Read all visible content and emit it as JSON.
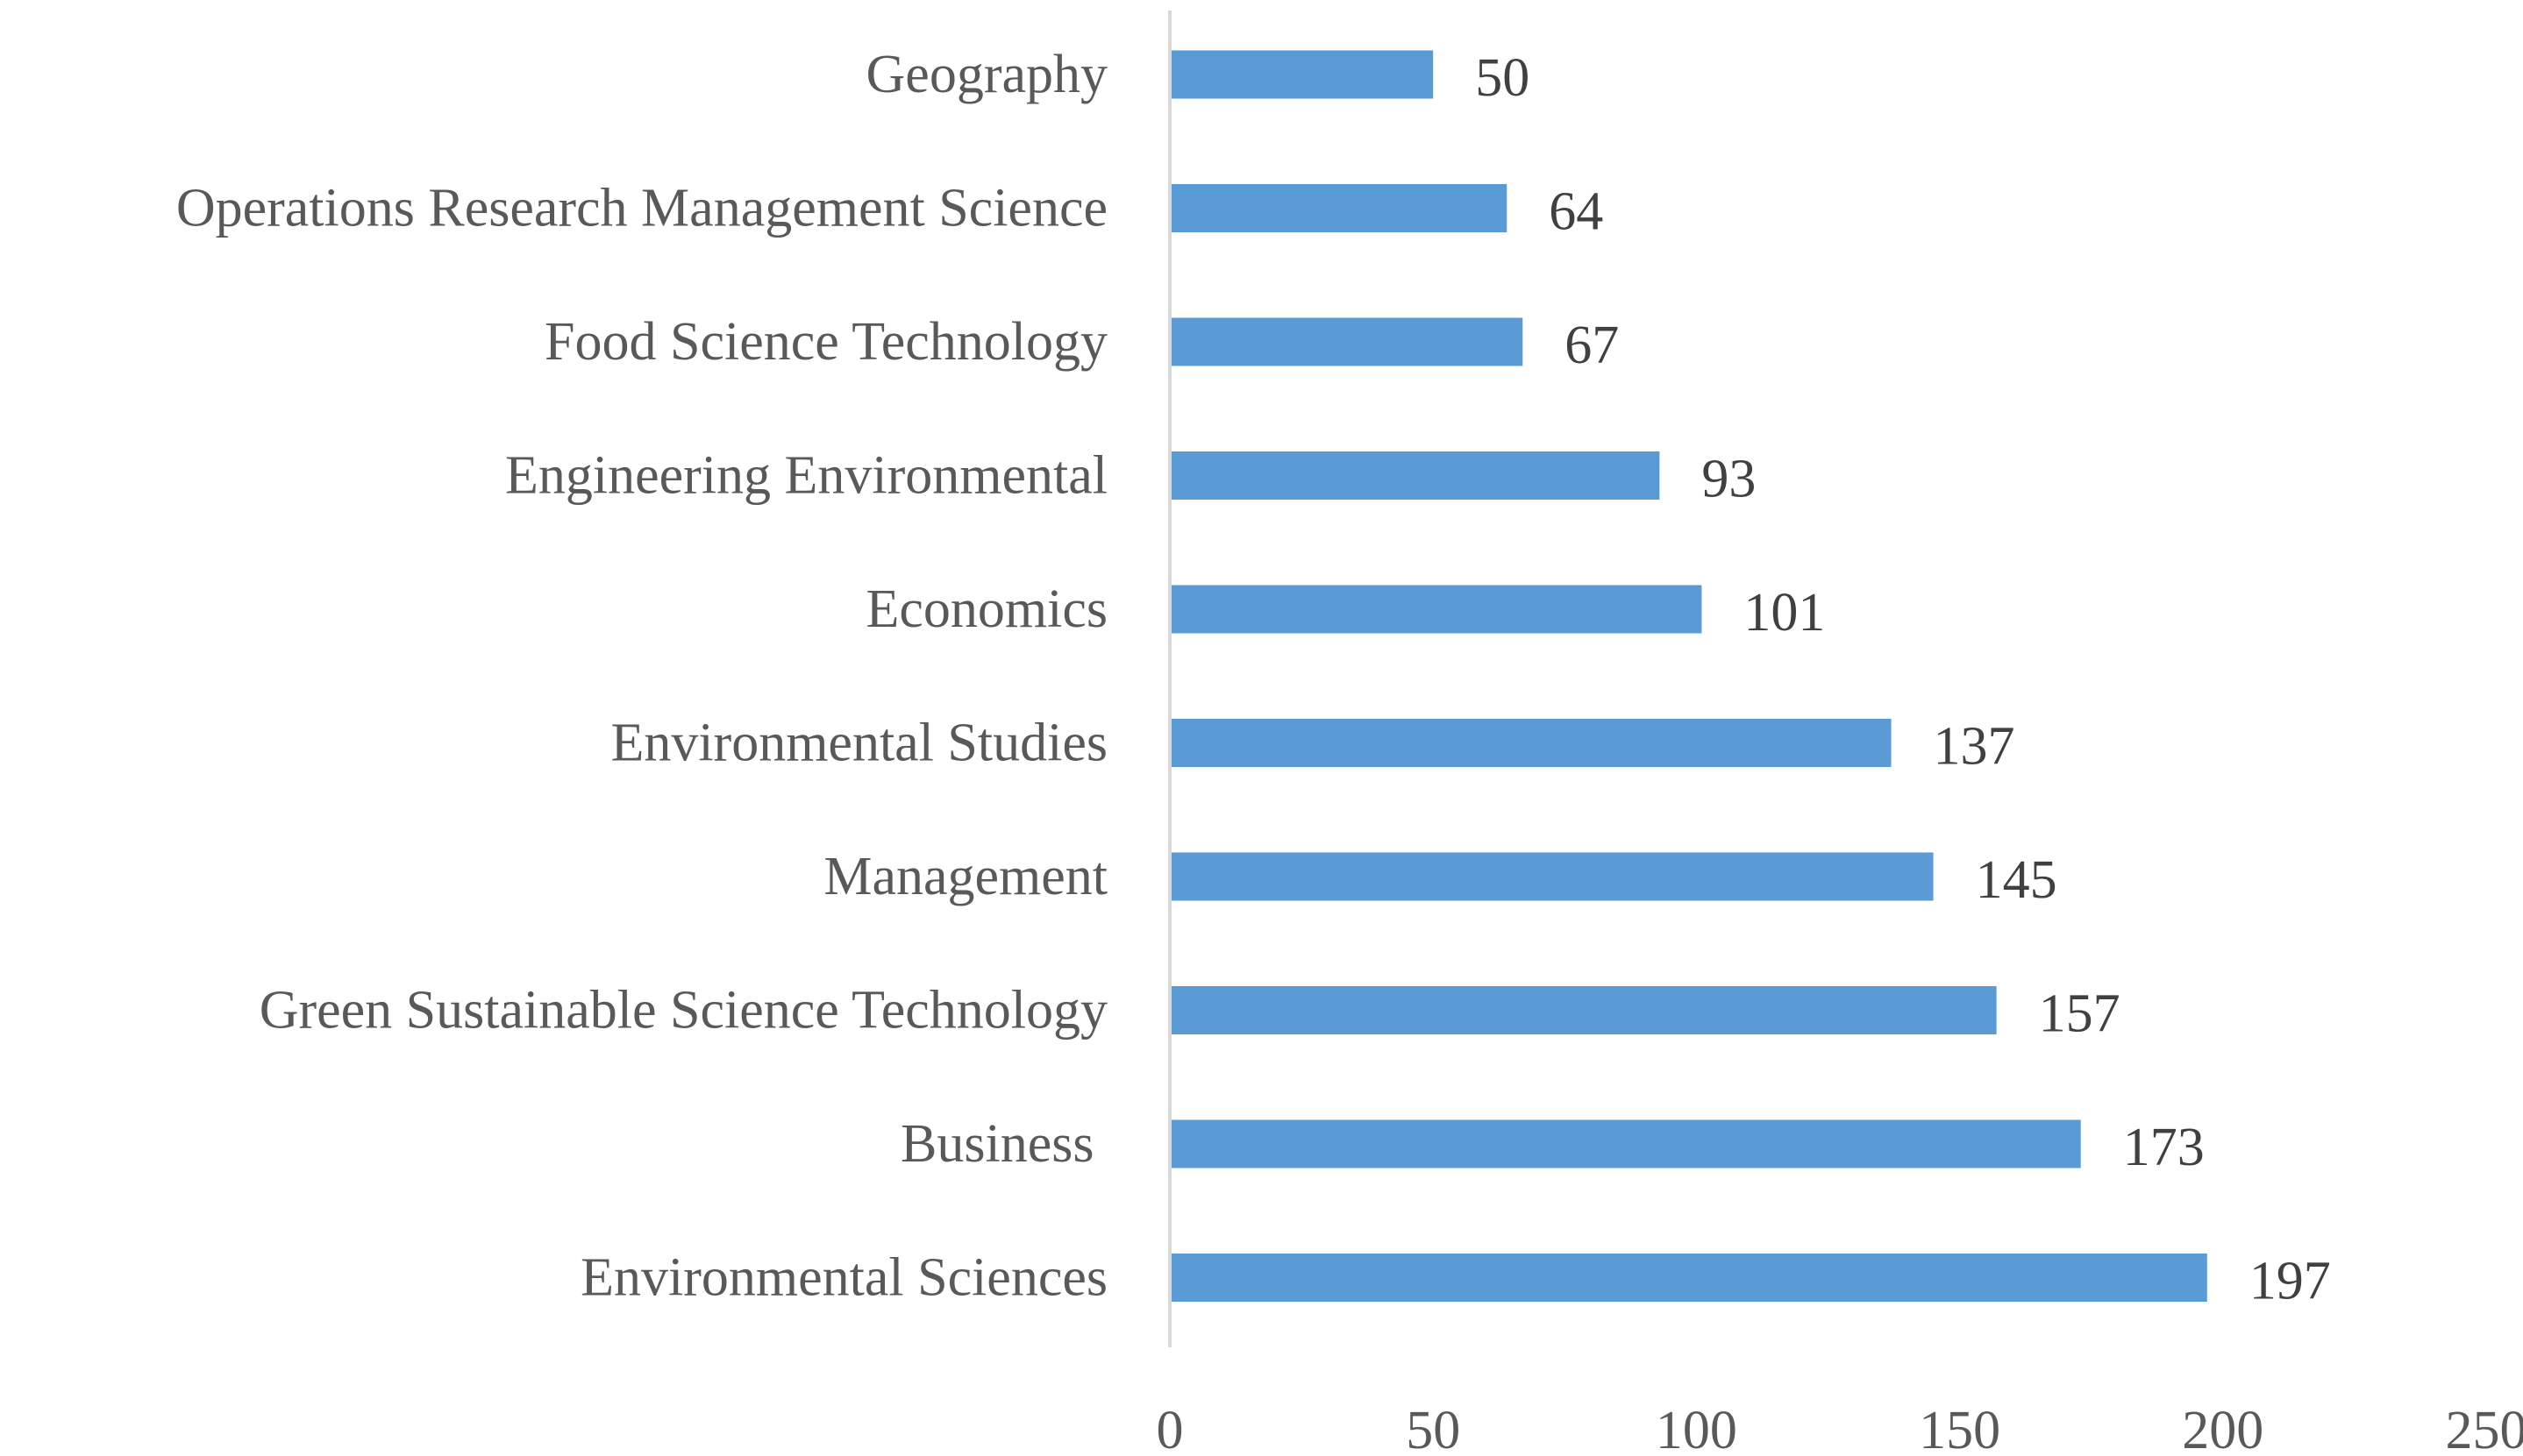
{
  "chart_data": {
    "type": "bar",
    "orientation": "horizontal",
    "title": "",
    "xlabel": "",
    "ylabel": "",
    "categories": [
      "Geography",
      "Operations Research Management Science",
      "Food Science Technology",
      "Engineering Environmental",
      "Economics",
      "Environmental Studies",
      "Management",
      "Green Sustainable Science Technology",
      "Business ",
      "Environmental Sciences"
    ],
    "values": [
      50,
      64,
      67,
      93,
      101,
      137,
      145,
      157,
      173,
      197
    ],
    "data_labels": [
      "50",
      "64",
      "67",
      "93",
      "101",
      "137",
      "145",
      "157",
      "173",
      "197"
    ],
    "xlim": [
      0,
      250
    ],
    "x_ticks": [
      0,
      50,
      100,
      150,
      200,
      250
    ],
    "x_tick_labels": [
      "0",
      "50",
      "100",
      "150",
      "200",
      "250"
    ],
    "grid": false,
    "legend": "none",
    "bar_color": "#5B9BD5",
    "axis_color": "#D9D9D9"
  }
}
